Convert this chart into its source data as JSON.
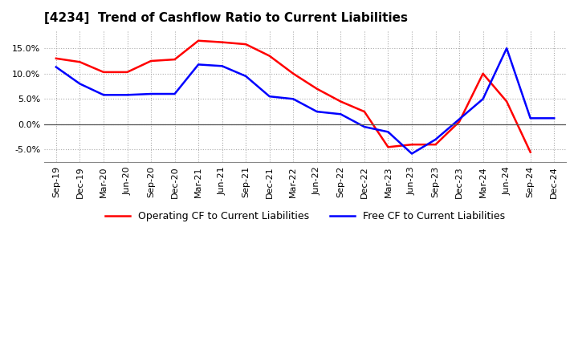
{
  "title": "[4234]  Trend of Cashflow Ratio to Current Liabilities",
  "title_fontsize": 11,
  "x_labels": [
    "Sep-19",
    "Dec-19",
    "Mar-20",
    "Jun-20",
    "Sep-20",
    "Dec-20",
    "Mar-21",
    "Jun-21",
    "Sep-21",
    "Dec-21",
    "Mar-22",
    "Jun-22",
    "Sep-22",
    "Dec-22",
    "Mar-23",
    "Jun-23",
    "Sep-23",
    "Dec-23",
    "Mar-24",
    "Jun-24",
    "Sep-24",
    "Dec-24"
  ],
  "operating_cf": [
    13.0,
    12.3,
    10.3,
    10.3,
    12.5,
    12.8,
    16.5,
    16.2,
    15.8,
    13.5,
    10.0,
    7.0,
    4.5,
    2.5,
    -4.5,
    -4.0,
    -4.0,
    0.5,
    10.0,
    4.5,
    -5.5,
    null
  ],
  "free_cf": [
    11.3,
    8.0,
    5.8,
    5.8,
    6.0,
    6.0,
    11.8,
    11.5,
    9.5,
    5.5,
    5.0,
    2.5,
    2.0,
    -0.5,
    -1.5,
    -5.8,
    -3.0,
    1.0,
    5.0,
    15.0,
    1.2,
    1.2
  ],
  "ylim": [
    -7.5,
    18.5
  ],
  "yticks": [
    -5.0,
    0.0,
    5.0,
    10.0,
    15.0
  ],
  "operating_color": "#FF0000",
  "free_color": "#0000FF",
  "grid_color": "#AAAAAA",
  "zero_line_color": "#555555",
  "background_color": "#FFFFFF",
  "legend_operating": "Operating CF to Current Liabilities",
  "legend_free": "Free CF to Current Liabilities"
}
